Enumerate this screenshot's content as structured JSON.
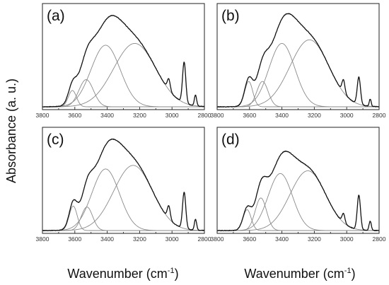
{
  "ylabel": "Absorbance (a. u.)",
  "xlabel_main": "Wavenumber (cm",
  "xlabel_exp": "-1",
  "xlabel_close": ")",
  "chart_data": [
    {
      "type": "line",
      "panel_label": "(a)",
      "xlim": [
        3800,
        2800
      ],
      "xticks": [
        "3800",
        "3600",
        "3400",
        "3200",
        "3000",
        "2800"
      ],
      "components": [
        {
          "center": 3615,
          "width": 25,
          "amp": 0.18
        },
        {
          "center": 3530,
          "width": 45,
          "amp": 0.3
        },
        {
          "center": 3410,
          "width": 90,
          "amp": 0.68
        },
        {
          "center": 3230,
          "width": 130,
          "amp": 0.7
        },
        {
          "center": 3020,
          "width": 9,
          "amp": 0.12
        },
        {
          "center": 2925,
          "width": 10,
          "amp": 0.45
        },
        {
          "center": 2855,
          "width": 7,
          "amp": 0.12
        }
      ]
    },
    {
      "type": "line",
      "panel_label": "(b)",
      "xlim": [
        3800,
        2800
      ],
      "xticks": [
        "3800",
        "3600",
        "3400",
        "3200",
        "3000",
        "2800"
      ],
      "components": [
        {
          "center": 3605,
          "width": 25,
          "amp": 0.28
        },
        {
          "center": 3520,
          "width": 35,
          "amp": 0.28
        },
        {
          "center": 3400,
          "width": 80,
          "amp": 0.7
        },
        {
          "center": 3230,
          "width": 120,
          "amp": 0.74
        },
        {
          "center": 3020,
          "width": 9,
          "amp": 0.14
        },
        {
          "center": 2925,
          "width": 10,
          "amp": 0.3
        },
        {
          "center": 2855,
          "width": 6,
          "amp": 0.08
        }
      ]
    },
    {
      "type": "line",
      "panel_label": "(c)",
      "xlim": [
        3800,
        2800
      ],
      "xticks": [
        "3800",
        "3600",
        "3400",
        "3200",
        "3000",
        "2800"
      ],
      "components": [
        {
          "center": 3610,
          "width": 25,
          "amp": 0.27
        },
        {
          "center": 3525,
          "width": 35,
          "amp": 0.26
        },
        {
          "center": 3410,
          "width": 85,
          "amp": 0.68
        },
        {
          "center": 3240,
          "width": 120,
          "amp": 0.72
        },
        {
          "center": 3020,
          "width": 9,
          "amp": 0.14
        },
        {
          "center": 2925,
          "width": 10,
          "amp": 0.4
        },
        {
          "center": 2855,
          "width": 7,
          "amp": 0.12
        }
      ]
    },
    {
      "type": "line",
      "panel_label": "(d)",
      "xlim": [
        3800,
        2800
      ],
      "xticks": [
        "3800",
        "3600",
        "3400",
        "3200",
        "3000",
        "2800"
      ],
      "components": [
        {
          "center": 3615,
          "width": 25,
          "amp": 0.23
        },
        {
          "center": 3530,
          "width": 35,
          "amp": 0.36
        },
        {
          "center": 3410,
          "width": 75,
          "amp": 0.63
        },
        {
          "center": 3240,
          "width": 110,
          "amp": 0.66
        },
        {
          "center": 3020,
          "width": 9,
          "amp": 0.1
        },
        {
          "center": 2925,
          "width": 10,
          "amp": 0.38
        },
        {
          "center": 2855,
          "width": 7,
          "amp": 0.1
        }
      ]
    }
  ]
}
